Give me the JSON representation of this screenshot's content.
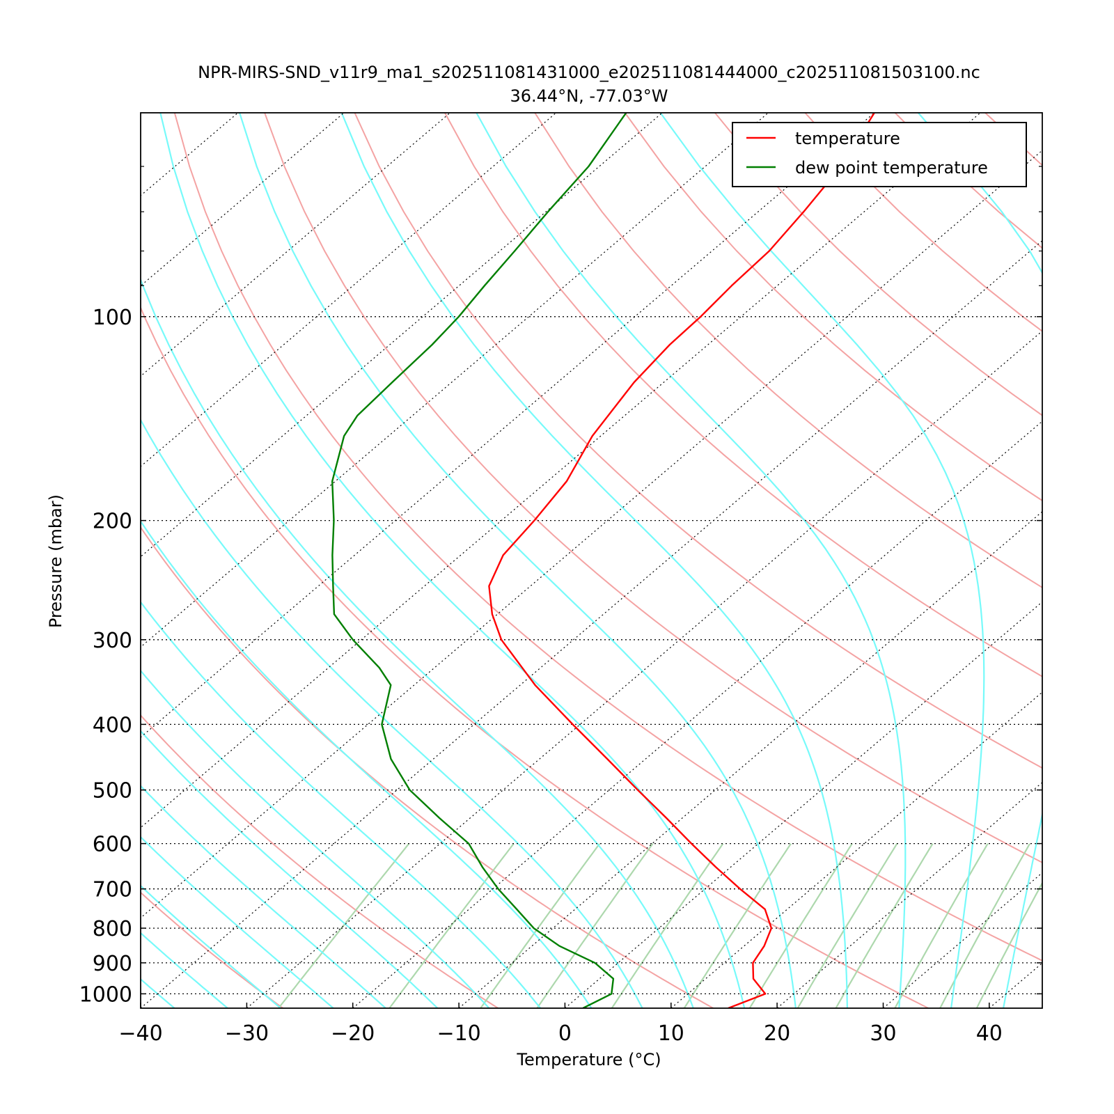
{
  "chart_data": {
    "type": "line",
    "title_lines": [
      "NPR-MIRS-SND_v11r9_ma1_s202511081431000_e202511081444000_c202511081503100.nc",
      "36.44°N, -77.03°W"
    ],
    "xlabel": "Temperature (°C)",
    "ylabel": "Pressure (mbar)",
    "xlim": [
      -40,
      45
    ],
    "ylim": [
      1050,
      50
    ],
    "yscale": "log",
    "skew_deg_per_decade": 75,
    "xticks": [
      -40,
      -30,
      -20,
      -10,
      0,
      10,
      20,
      30,
      40
    ],
    "xtick_labels": [
      "−40",
      "−30",
      "−20",
      "−10",
      "0",
      "10",
      "20",
      "30",
      "40"
    ],
    "yticks": [
      100,
      200,
      300,
      400,
      500,
      600,
      700,
      800,
      900,
      1000
    ],
    "ytick_labels": [
      "100",
      "200",
      "300",
      "400",
      "500",
      "600",
      "700",
      "800",
      "900",
      "1000"
    ],
    "legend": {
      "position": "top-right",
      "entries": [
        {
          "label": "temperature",
          "color": "#ff0000"
        },
        {
          "label": "dew point temperature",
          "color": "#007f00"
        }
      ]
    },
    "series": [
      {
        "name": "temperature",
        "color": "#ff0000",
        "pressure": [
          1050,
          1000,
          950,
          900,
          850,
          800,
          750,
          700,
          650,
          600,
          550,
          500,
          450,
          400,
          350,
          300,
          275,
          250,
          225,
          200,
          175,
          150,
          125,
          110,
          100,
          90,
          80,
          70,
          60,
          50
        ],
        "temp": [
          15.4,
          17.3,
          14.5,
          12.7,
          11.9,
          10.6,
          7.9,
          3.3,
          -1.4,
          -6.3,
          -11.5,
          -17.3,
          -23.6,
          -30.7,
          -38.6,
          -46.8,
          -50.5,
          -53.9,
          -56.0,
          -56.9,
          -58.2,
          -60.8,
          -62.8,
          -63.6,
          -63.8,
          -64.3,
          -64.6,
          -65.7,
          -67.2,
          -70.0
        ]
      },
      {
        "name": "dew point temperature",
        "color": "#007f00",
        "pressure": [
          1050,
          1000,
          950,
          900,
          850,
          800,
          750,
          700,
          650,
          600,
          550,
          500,
          450,
          400,
          350,
          330,
          300,
          275,
          250,
          225,
          200,
          175,
          150,
          140,
          125,
          110,
          100,
          90,
          80,
          70,
          60,
          50
        ],
        "temp": [
          1.7,
          2.8,
          1.3,
          -2.2,
          -7.4,
          -11.8,
          -15.5,
          -19.5,
          -23.4,
          -27.3,
          -32.9,
          -38.8,
          -44.0,
          -48.7,
          -52.2,
          -55.2,
          -60.8,
          -65.4,
          -68.6,
          -72.1,
          -75.8,
          -80.3,
          -84.2,
          -85.2,
          -85.6,
          -86.0,
          -86.6,
          -87.6,
          -88.6,
          -89.8,
          -91.0,
          -93.4
        ]
      }
    ],
    "background_lines": {
      "isotherms_color": "#000000",
      "dry_adiabats_color": "#f4a3a3",
      "moist_adiabats_color": "#77fafa",
      "mixing_ratio_color": "#add8ad"
    }
  }
}
